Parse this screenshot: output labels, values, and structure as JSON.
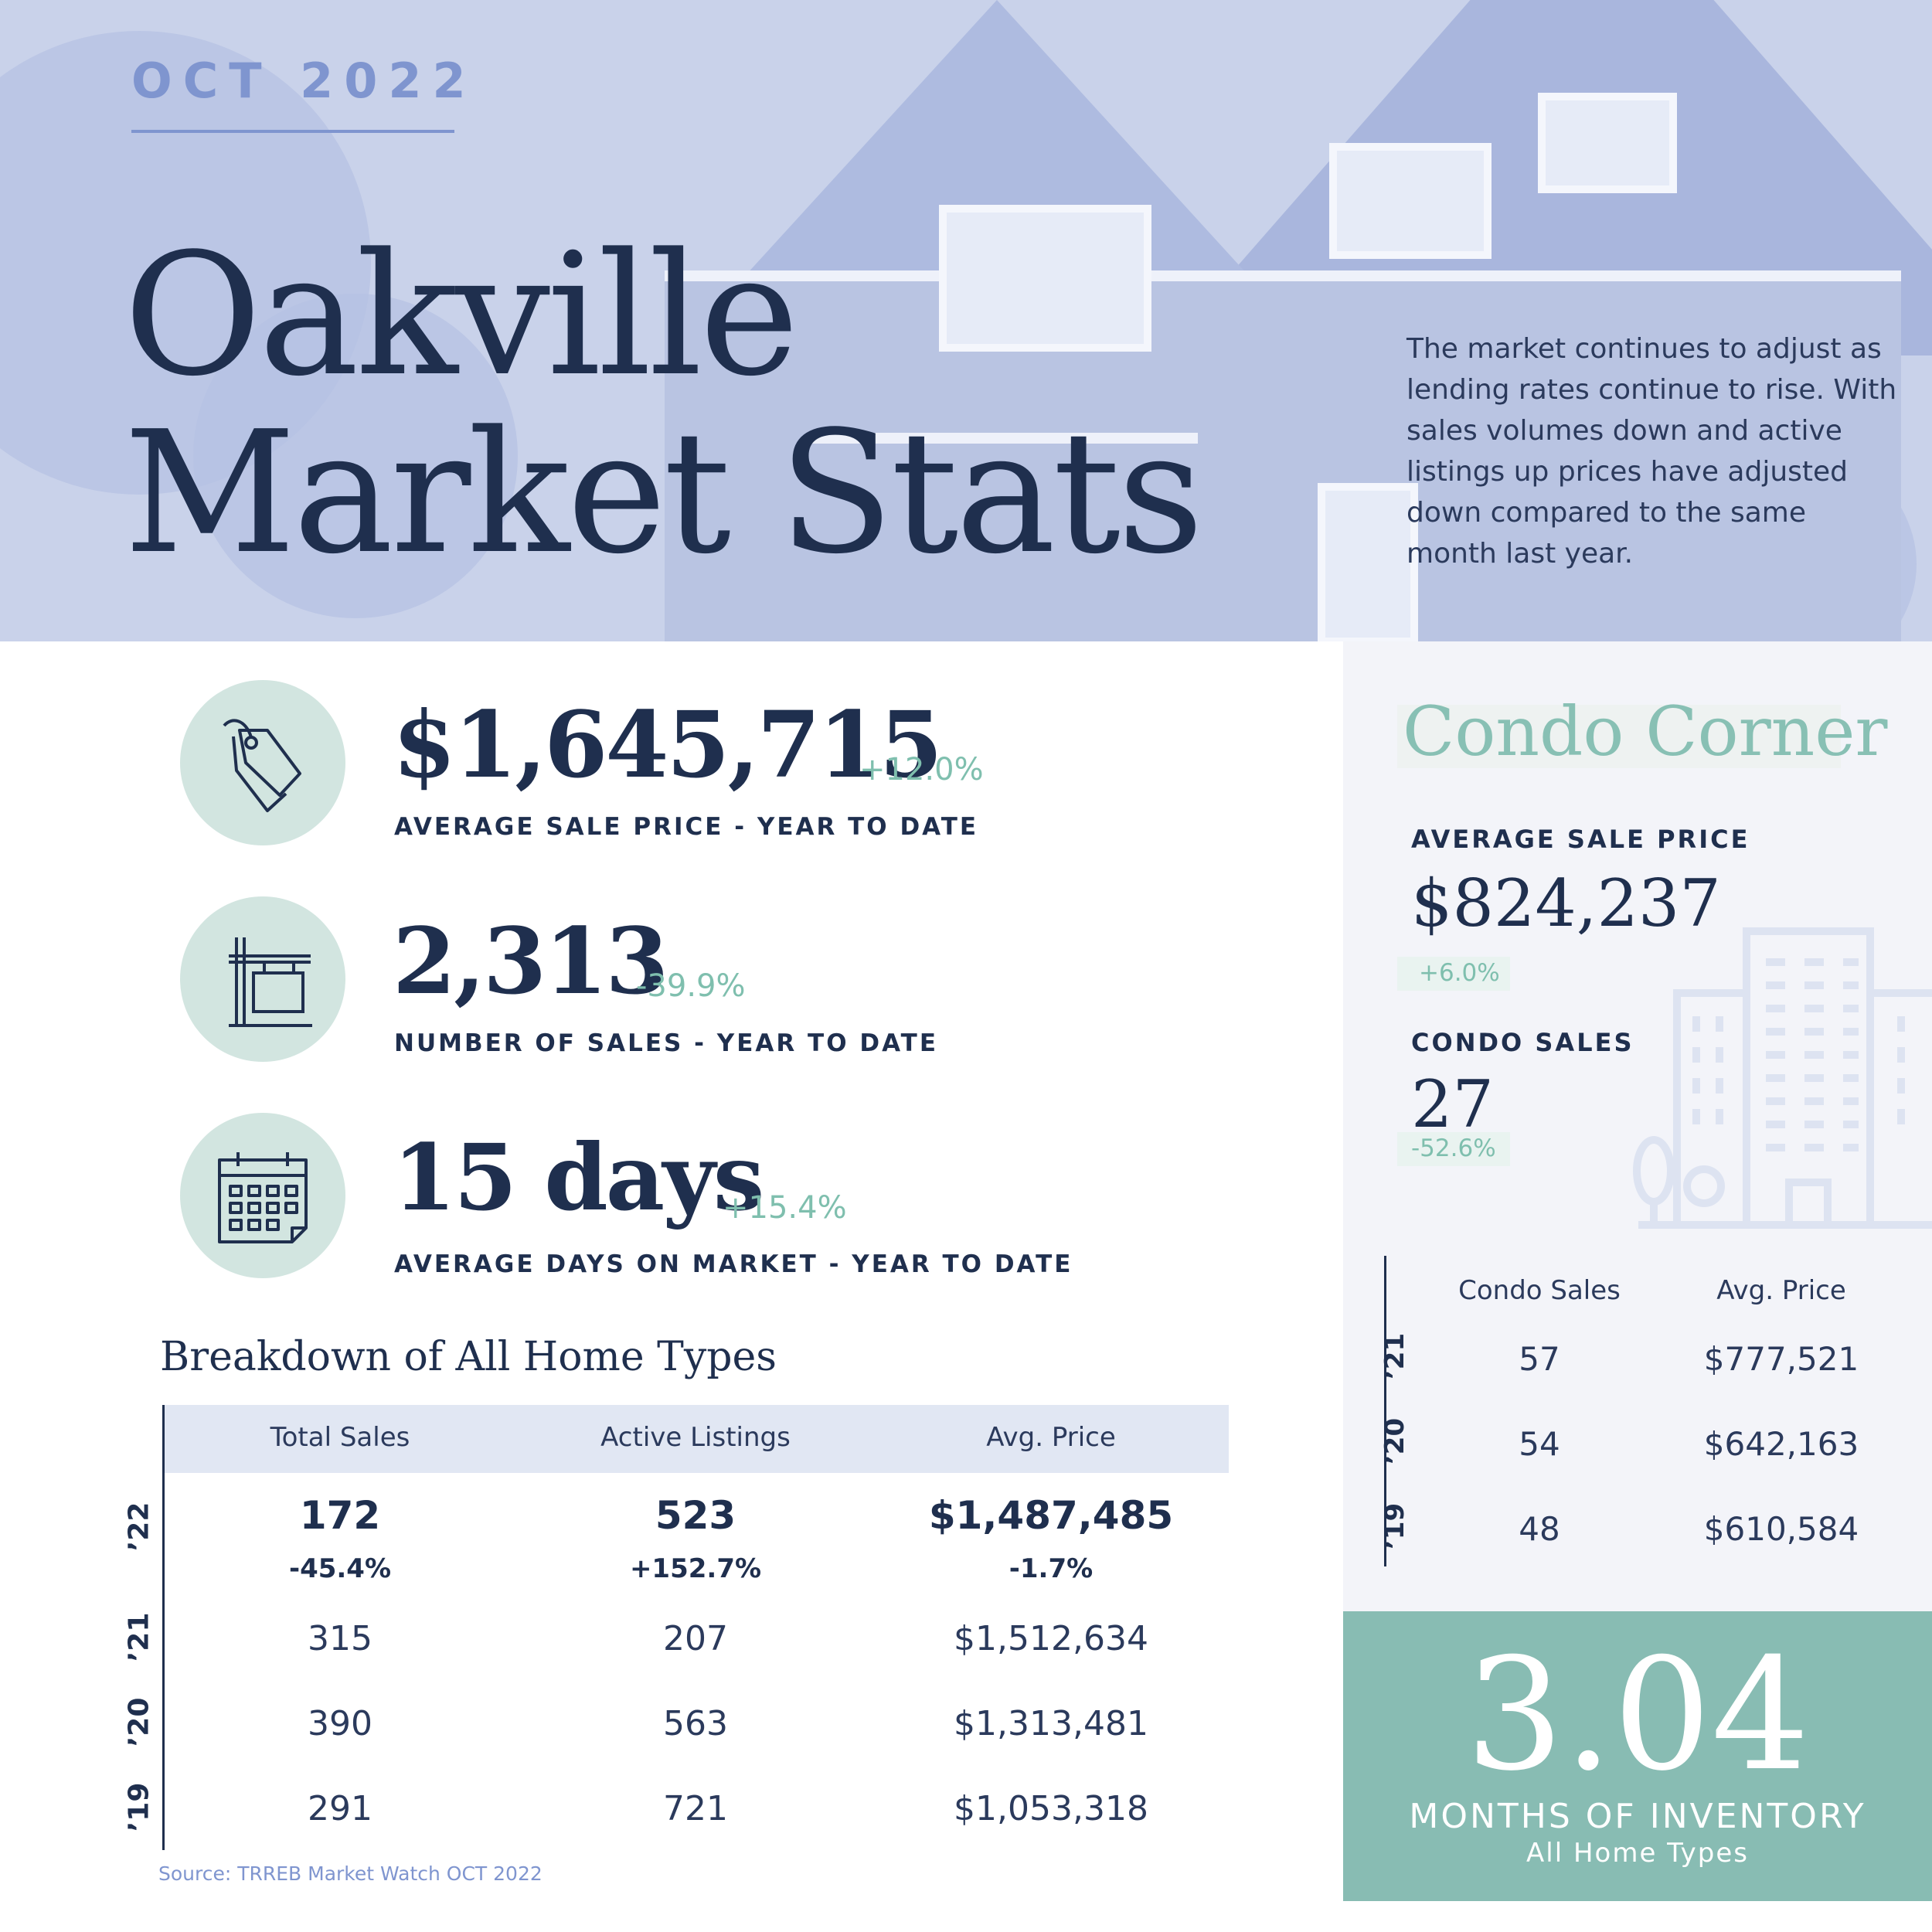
{
  "header": {
    "date": "OCT 2022",
    "title_line1": "Oakville",
    "title_line2": "Market Stats",
    "intro": "The market continues to adjust as lending rates continue to rise. With sales volumes down and active listings up prices have adjusted down compared to the same month last year."
  },
  "kpis": [
    {
      "icon": "price-tag-icon",
      "value": "$1,645,715",
      "change": "+12.0%",
      "label": "AVERAGE SALE PRICE - YEAR TO DATE"
    },
    {
      "icon": "sale-sign-icon",
      "value": "2,313",
      "change": "-39.9%",
      "label": "NUMBER OF SALES - YEAR TO DATE"
    },
    {
      "icon": "calendar-icon",
      "value": "15 days",
      "change": "+15.4%",
      "label": "AVERAGE DAYS ON MARKET - YEAR TO DATE"
    }
  ],
  "breakdown": {
    "title": "Breakdown of All Home Types",
    "headers": [
      "Total Sales",
      "Active Listings",
      "Avg. Price"
    ],
    "current": {
      "year": "’22",
      "values": [
        "172",
        "523",
        "$1,487,485"
      ],
      "changes": [
        "-45.4%",
        "+152.7%",
        "-1.7%"
      ]
    },
    "rows": [
      {
        "year": "’21",
        "values": [
          "315",
          "207",
          "$1,512,634"
        ]
      },
      {
        "year": "’20",
        "values": [
          "390",
          "563",
          "$1,313,481"
        ]
      },
      {
        "year": "’19",
        "values": [
          "291",
          "721",
          "$1,053,318"
        ]
      }
    ],
    "source": "Source: TRREB Market Watch OCT 2022"
  },
  "condo": {
    "title": "Condo Corner",
    "avg_price_label": "AVERAGE SALE PRICE",
    "avg_price_value": "$824,237",
    "avg_price_change": "+6.0%",
    "sales_label": "CONDO SALES",
    "sales_value": "27",
    "sales_change": "-52.6%",
    "headers": [
      "Condo Sales",
      "Avg. Price"
    ],
    "rows": [
      {
        "year": "’21",
        "values": [
          "57",
          "$777,521"
        ]
      },
      {
        "year": "’20",
        "values": [
          "54",
          "$642,163"
        ]
      },
      {
        "year": "’19",
        "values": [
          "48",
          "$610,584"
        ]
      }
    ]
  },
  "inventory": {
    "value": "3.04",
    "label": "MONTHS OF INVENTORY",
    "sublabel": "All Home Types"
  },
  "colors": {
    "navy": "#1f2f4e",
    "periwinkle": "#7f95cf",
    "mint": "#88bcb3",
    "mint_light": "#d2e5e0",
    "accent_green": "#7fbfae"
  }
}
